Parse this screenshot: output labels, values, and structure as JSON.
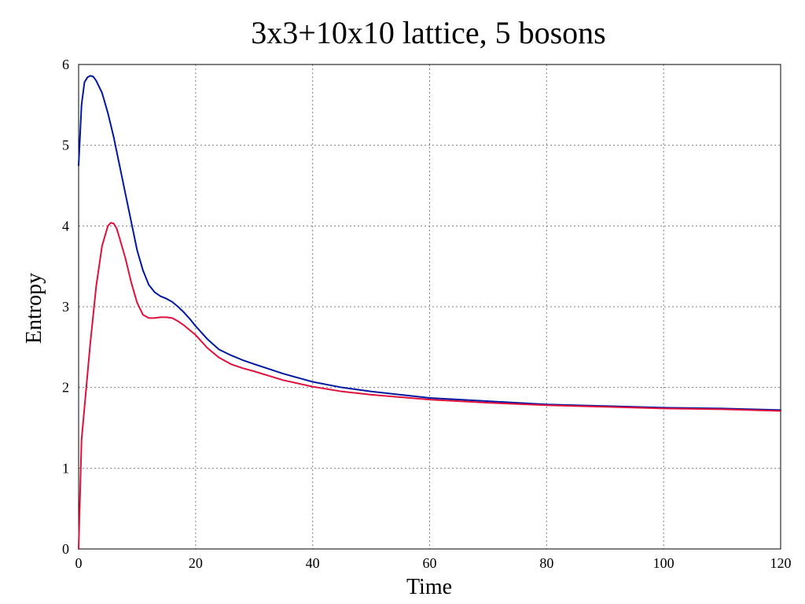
{
  "chart_data": {
    "type": "line",
    "title": "3x3+10x10 lattice, 5 bosons",
    "xlabel": "Time",
    "ylabel": "Entropy",
    "xlim": [
      0,
      120
    ],
    "ylim": [
      0,
      6
    ],
    "xticks": [
      0,
      20,
      40,
      60,
      80,
      100,
      120
    ],
    "yticks": [
      0,
      1,
      2,
      3,
      4,
      5,
      6
    ],
    "grid": true,
    "series": [
      {
        "color": "#0018a0",
        "x": [
          0,
          0.5,
          1,
          1.5,
          2,
          2.5,
          3,
          4,
          5,
          6,
          7,
          8,
          9,
          10,
          11,
          12,
          13,
          14,
          15,
          16,
          17,
          18,
          19,
          20,
          22,
          24,
          26,
          28,
          30,
          35,
          40,
          45,
          50,
          55,
          60,
          70,
          80,
          90,
          100,
          110,
          120
        ],
        "values": [
          4.75,
          5.5,
          5.78,
          5.84,
          5.86,
          5.85,
          5.8,
          5.65,
          5.4,
          5.1,
          4.75,
          4.4,
          4.05,
          3.7,
          3.45,
          3.27,
          3.18,
          3.13,
          3.1,
          3.06,
          3.0,
          2.93,
          2.85,
          2.76,
          2.6,
          2.47,
          2.4,
          2.34,
          2.29,
          2.17,
          2.07,
          2.0,
          1.95,
          1.91,
          1.87,
          1.83,
          1.79,
          1.77,
          1.75,
          1.74,
          1.72
        ]
      },
      {
        "color": "#e0103c",
        "x": [
          0,
          0.5,
          1,
          1.5,
          2,
          3,
          4,
          5,
          5.5,
          6,
          6.5,
          7,
          8,
          9,
          10,
          11,
          12,
          13,
          14,
          15,
          16,
          17,
          18,
          19,
          20,
          22,
          24,
          26,
          28,
          30,
          35,
          40,
          45,
          50,
          55,
          60,
          70,
          80,
          90,
          100,
          110,
          120
        ],
        "values": [
          0.0,
          1.35,
          1.75,
          2.15,
          2.55,
          3.25,
          3.75,
          4.0,
          4.04,
          4.03,
          3.97,
          3.85,
          3.6,
          3.3,
          3.05,
          2.9,
          2.86,
          2.86,
          2.87,
          2.87,
          2.86,
          2.82,
          2.77,
          2.71,
          2.65,
          2.49,
          2.37,
          2.29,
          2.24,
          2.2,
          2.09,
          2.01,
          1.95,
          1.91,
          1.88,
          1.85,
          1.81,
          1.78,
          1.76,
          1.74,
          1.73,
          1.71
        ]
      }
    ]
  }
}
